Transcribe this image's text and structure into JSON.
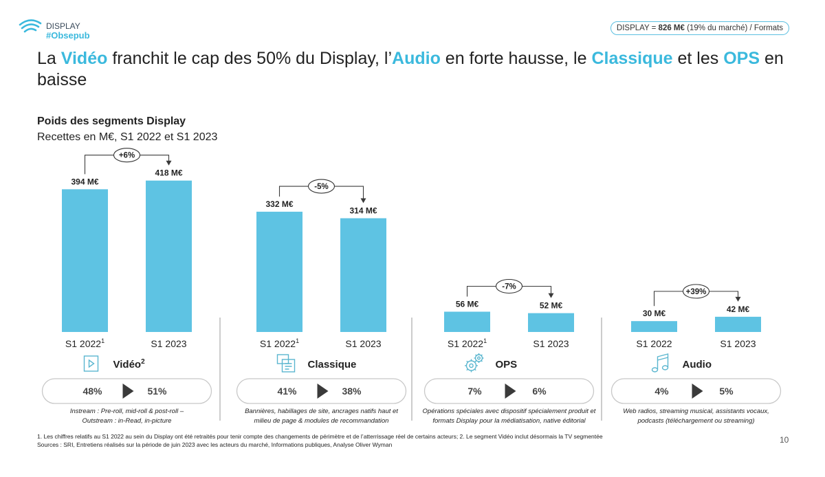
{
  "brand": {
    "name": "DISPLAY",
    "tag": "#Obsepub"
  },
  "top_pill": {
    "prefix": "DISPLAY = ",
    "value": "826 M€",
    "suffix": " (19% du marché) / Formats"
  },
  "headline": {
    "p1": "La ",
    "h1": "Vidéo",
    "p2": " franchit le cap des 50% du Display, l’",
    "h2": "Audio",
    "p3": " en forte hausse, le ",
    "h3": "Classique",
    "p4": " et les ",
    "h4": "OPS",
    "p5": " en baisse"
  },
  "subtitle": "Poids des segments Display",
  "subtitle2": "Recettes en M€, S1 2022 et S1 2023",
  "chart_data": {
    "type": "bar",
    "unit": "M€",
    "groups": [
      {
        "segment": "Vidéo",
        "segment_sup": "2",
        "categories": [
          "S1 2022",
          "S1 2023"
        ],
        "category_sups": [
          "1",
          ""
        ],
        "values": [
          394,
          418
        ],
        "value_labels": [
          "394 M€",
          "418 M€"
        ],
        "change": "+6%",
        "shares": [
          "48%",
          "51%"
        ],
        "desc": [
          "Instream : Pre-roll, mid-roll & post-roll –",
          "Outstream : in-Read, in-picture"
        ]
      },
      {
        "segment": "Classique",
        "segment_sup": "",
        "categories": [
          "S1 2022",
          "S1 2023"
        ],
        "category_sups": [
          "1",
          ""
        ],
        "values": [
          332,
          314
        ],
        "value_labels": [
          "332 M€",
          "314 M€"
        ],
        "change": "-5%",
        "shares": [
          "41%",
          "38%"
        ],
        "desc": [
          "Bannières, habillages de site, ancrages natifs haut et",
          "milieu de page & modules de recommandation"
        ]
      },
      {
        "segment": "OPS",
        "segment_sup": "",
        "categories": [
          "S1 2022",
          "S1 2023"
        ],
        "category_sups": [
          "1",
          ""
        ],
        "values": [
          56,
          52
        ],
        "value_labels": [
          "56 M€",
          "52 M€"
        ],
        "change": "-7%",
        "shares": [
          "7%",
          "6%"
        ],
        "desc": [
          "Opérations spéciales avec dispositif spécialement produit et",
          "formats Display pour la médiatisation, native éditorial"
        ]
      },
      {
        "segment": "Audio",
        "segment_sup": "",
        "categories": [
          "S1 2022",
          "S1 2023"
        ],
        "category_sups": [
          "",
          ""
        ],
        "values": [
          30,
          42
        ],
        "value_labels": [
          "30 M€",
          "42 M€"
        ],
        "change": "+39%",
        "shares": [
          "4%",
          "5%"
        ],
        "desc": [
          "Web radios, streaming musical, assistants vocaux,",
          "podcasts (téléchargement ou streaming)"
        ]
      }
    ],
    "colors": {
      "bar": "#5ec3e3",
      "accent": "#3bb9dd",
      "pill_border": "#c8c8c8",
      "arrow": "#3a3a3a"
    },
    "icons": [
      "video-play-icon",
      "chat-document-icon",
      "gears-icon",
      "music-note-icon"
    ]
  },
  "footnote1": "1. Les chiffres relatifs au S1 2022 au sein du Display ont été retraités pour tenir compte des changements de périmètre et de l’atterrissage réel de certains acteurs; 2. Le segment Vidéo inclut désormais la TV segmentée",
  "footnote2": "Sources : SRI, Entretiens réalisés sur la période de juin 2023 avec les acteurs du marché, Informations publiques, Analyse Oliver Wyman",
  "page_number": "10"
}
